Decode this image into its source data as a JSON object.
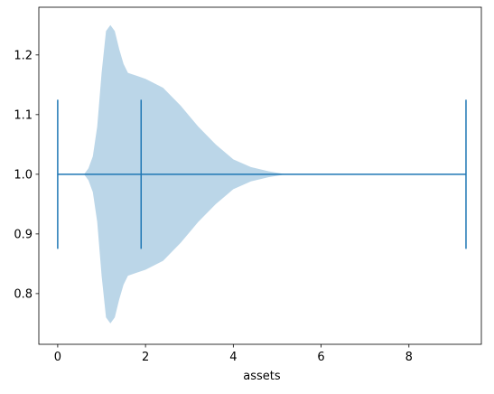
{
  "chart_data": {
    "type": "violin",
    "orientation": "horizontal",
    "xlabel": "assets",
    "position": 1,
    "color": "#1f77b4",
    "body_alpha": 0.3,
    "min": 0,
    "median": 1.9,
    "max": 9.3,
    "extrema_halfwidth": 0.125,
    "density": {
      "x": [
        0.6,
        0.7,
        0.8,
        0.9,
        1.0,
        1.1,
        1.2,
        1.3,
        1.4,
        1.5,
        1.6,
        1.8,
        2.0,
        2.4,
        2.8,
        3.2,
        3.6,
        4.0,
        4.4,
        4.8,
        5.2
      ],
      "halfwidth": [
        0,
        0.01,
        0.03,
        0.08,
        0.17,
        0.24,
        0.25,
        0.24,
        0.21,
        0.185,
        0.17,
        0.165,
        0.16,
        0.145,
        0.115,
        0.08,
        0.05,
        0.025,
        0.012,
        0.005,
        0
      ]
    },
    "xlim": [
      -0.43,
      9.65
    ],
    "xticks": [
      0,
      2,
      4,
      6,
      8
    ],
    "ylim": [
      0.715,
      1.28
    ],
    "yticks": [
      0.8,
      0.9,
      {
        "value": 1,
        "label": "1.0"
      },
      1.1,
      1.2
    ]
  }
}
